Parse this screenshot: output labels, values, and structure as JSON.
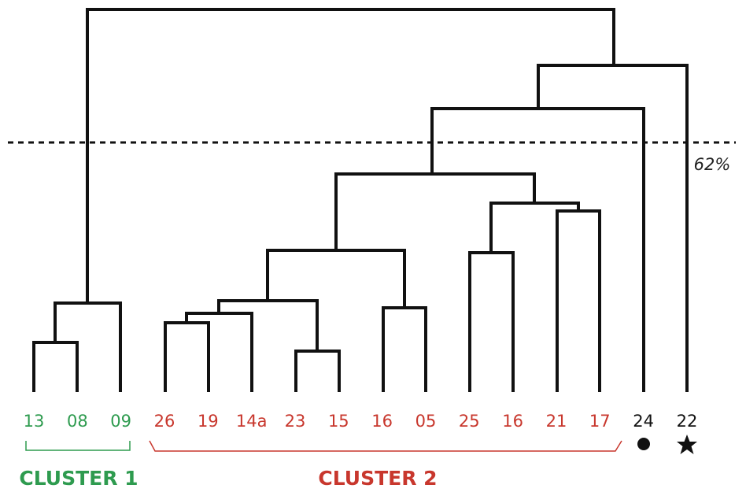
{
  "threshold_label": "62%",
  "clusters": [
    {
      "label": "CLUSTER 1",
      "leaves": [
        "13",
        "08",
        "09"
      ]
    },
    {
      "label": "CLUSTER 2",
      "leaves": [
        "26",
        "19",
        "14a",
        "23",
        "15",
        "16",
        "05",
        "25",
        "16",
        "21",
        "17"
      ]
    }
  ],
  "outliers": [
    "24",
    "22"
  ]
}
